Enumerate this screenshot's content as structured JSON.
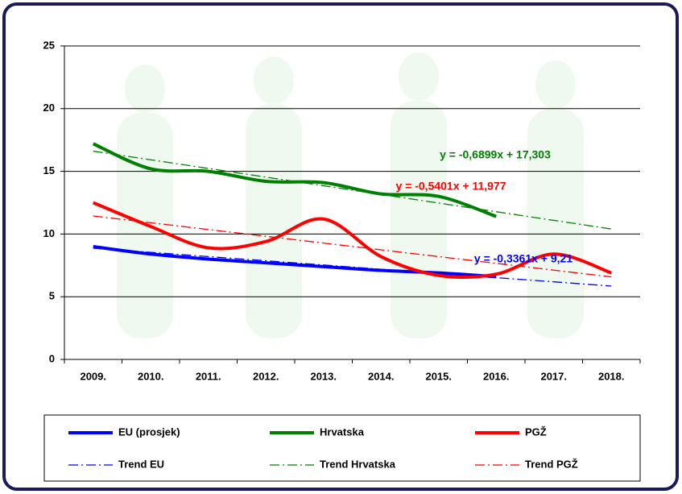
{
  "chart_data": {
    "type": "line",
    "categories": [
      "2009.",
      "2010.",
      "2011.",
      "2012.",
      "2013.",
      "2014.",
      "2015.",
      "2016.",
      "2017.",
      "2018."
    ],
    "series": [
      {
        "name": "EU (prosjek)",
        "color": "#0000ff",
        "style": "solid",
        "values": [
          9.0,
          8.4,
          8.0,
          7.7,
          7.4,
          7.1,
          6.9,
          6.6,
          null,
          null
        ]
      },
      {
        "name": "Hrvatska",
        "color": "#008000",
        "style": "solid",
        "values": [
          17.2,
          15.2,
          15.0,
          14.2,
          14.1,
          13.2,
          13.0,
          11.4,
          null,
          null
        ]
      },
      {
        "name": "PGŽ",
        "color": "#ff0000",
        "style": "solid",
        "values": [
          12.5,
          10.6,
          8.9,
          9.4,
          11.2,
          8.2,
          6.7,
          6.8,
          8.4,
          6.9
        ]
      },
      {
        "name": "Trend EU",
        "color": "#0000ff",
        "style": "dashdot",
        "values": [
          8.87,
          8.54,
          8.2,
          7.87,
          7.53,
          7.19,
          6.86,
          6.52,
          6.19,
          5.85
        ]
      },
      {
        "name": "Trend Hrvatska",
        "color": "#008000",
        "style": "dashdot",
        "values": [
          16.61,
          15.92,
          15.23,
          14.54,
          13.85,
          13.16,
          12.47,
          11.78,
          11.09,
          10.4
        ]
      },
      {
        "name": "Trend PGŽ",
        "color": "#ff0000",
        "style": "dashdot",
        "values": [
          11.44,
          10.9,
          10.36,
          9.82,
          9.28,
          8.74,
          8.2,
          7.66,
          7.12,
          6.58
        ]
      }
    ],
    "annotations": [
      {
        "text": "y = -0,6899x + 17,303",
        "color": "#008000"
      },
      {
        "text": "y = -0,5401x + 11,977",
        "color": "#ff0000"
      },
      {
        "text": "y = -0,3361x + 9,21",
        "color": "#0000ff"
      }
    ],
    "ylim": [
      0,
      25
    ],
    "yticks": [
      0,
      5,
      10,
      15,
      20,
      25
    ],
    "grid": true,
    "smooth": true
  }
}
